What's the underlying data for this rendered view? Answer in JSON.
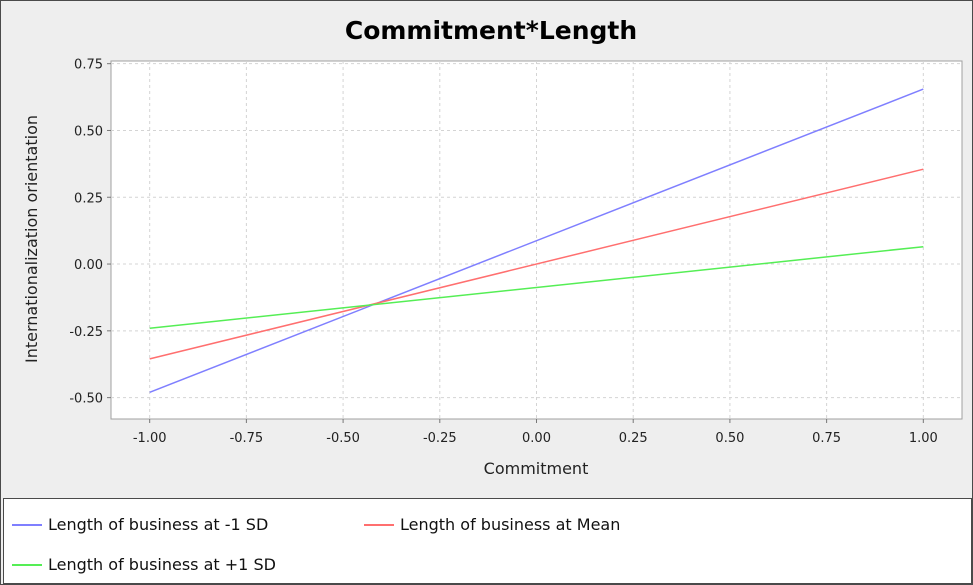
{
  "chart_data": {
    "type": "line",
    "title": "Commitment*Length",
    "xlabel": "Commitment",
    "ylabel": "Internationalization orientation",
    "xlim": [
      -1.1,
      1.1
    ],
    "ylim": [
      -0.58,
      0.76
    ],
    "xticks": [
      -1.0,
      -0.75,
      -0.5,
      -0.25,
      0.0,
      0.25,
      0.5,
      0.75,
      1.0
    ],
    "xtick_labels": [
      "-1.00",
      "-0.75",
      "-0.50",
      "-0.25",
      "0.00",
      "0.25",
      "0.50",
      "0.75",
      "1.00"
    ],
    "yticks": [
      -0.5,
      -0.25,
      0.0,
      0.25,
      0.5,
      0.75
    ],
    "ytick_labels": [
      "-0.50",
      "-0.25",
      "0.00",
      "0.25",
      "0.50",
      "0.75"
    ],
    "grid": true,
    "legend_position": "bottom",
    "series": [
      {
        "name": "Length of business at -1 SD",
        "color": "#7f7fff",
        "x": [
          -1.0,
          1.0
        ],
        "y": [
          -0.48,
          0.655
        ]
      },
      {
        "name": "Length of business at Mean",
        "color": "#ff6f6f",
        "x": [
          -1.0,
          1.0
        ],
        "y": [
          -0.355,
          0.355
        ]
      },
      {
        "name": "Length of business at +1 SD",
        "color": "#55ee55",
        "x": [
          -1.0,
          1.0
        ],
        "y": [
          -0.24,
          0.065
        ]
      }
    ]
  }
}
